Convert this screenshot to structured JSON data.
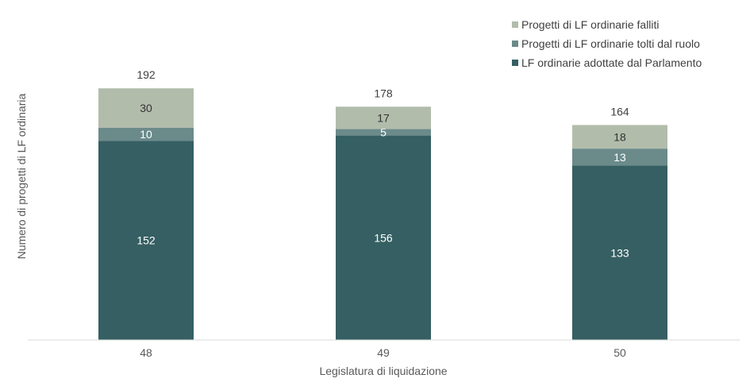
{
  "chart_data": {
    "type": "bar",
    "stacked": true,
    "categories": [
      "48",
      "49",
      "50"
    ],
    "series": [
      {
        "name": "LF ordinarie adottate dal Parlamento",
        "values": [
          152,
          156,
          133
        ],
        "color": "#355f63",
        "label_color": "#ffffff"
      },
      {
        "name": "Progetti di LF ordinarie tolti dal ruolo",
        "values": [
          10,
          5,
          13
        ],
        "color": "#6b8a8a",
        "label_color": "#ffffff"
      },
      {
        "name": "Progetti di LF ordinarie falliti",
        "values": [
          30,
          17,
          18
        ],
        "color": "#b2bcab",
        "label_color": "#333333"
      }
    ],
    "totals": [
      192,
      178,
      164
    ],
    "title": "",
    "xlabel": "Legislatura di liquidazione",
    "ylabel": "Numero di progetti di LF ordinaria",
    "ylim": [
      0,
      200
    ],
    "grid": false,
    "legend_position": "top-right"
  }
}
